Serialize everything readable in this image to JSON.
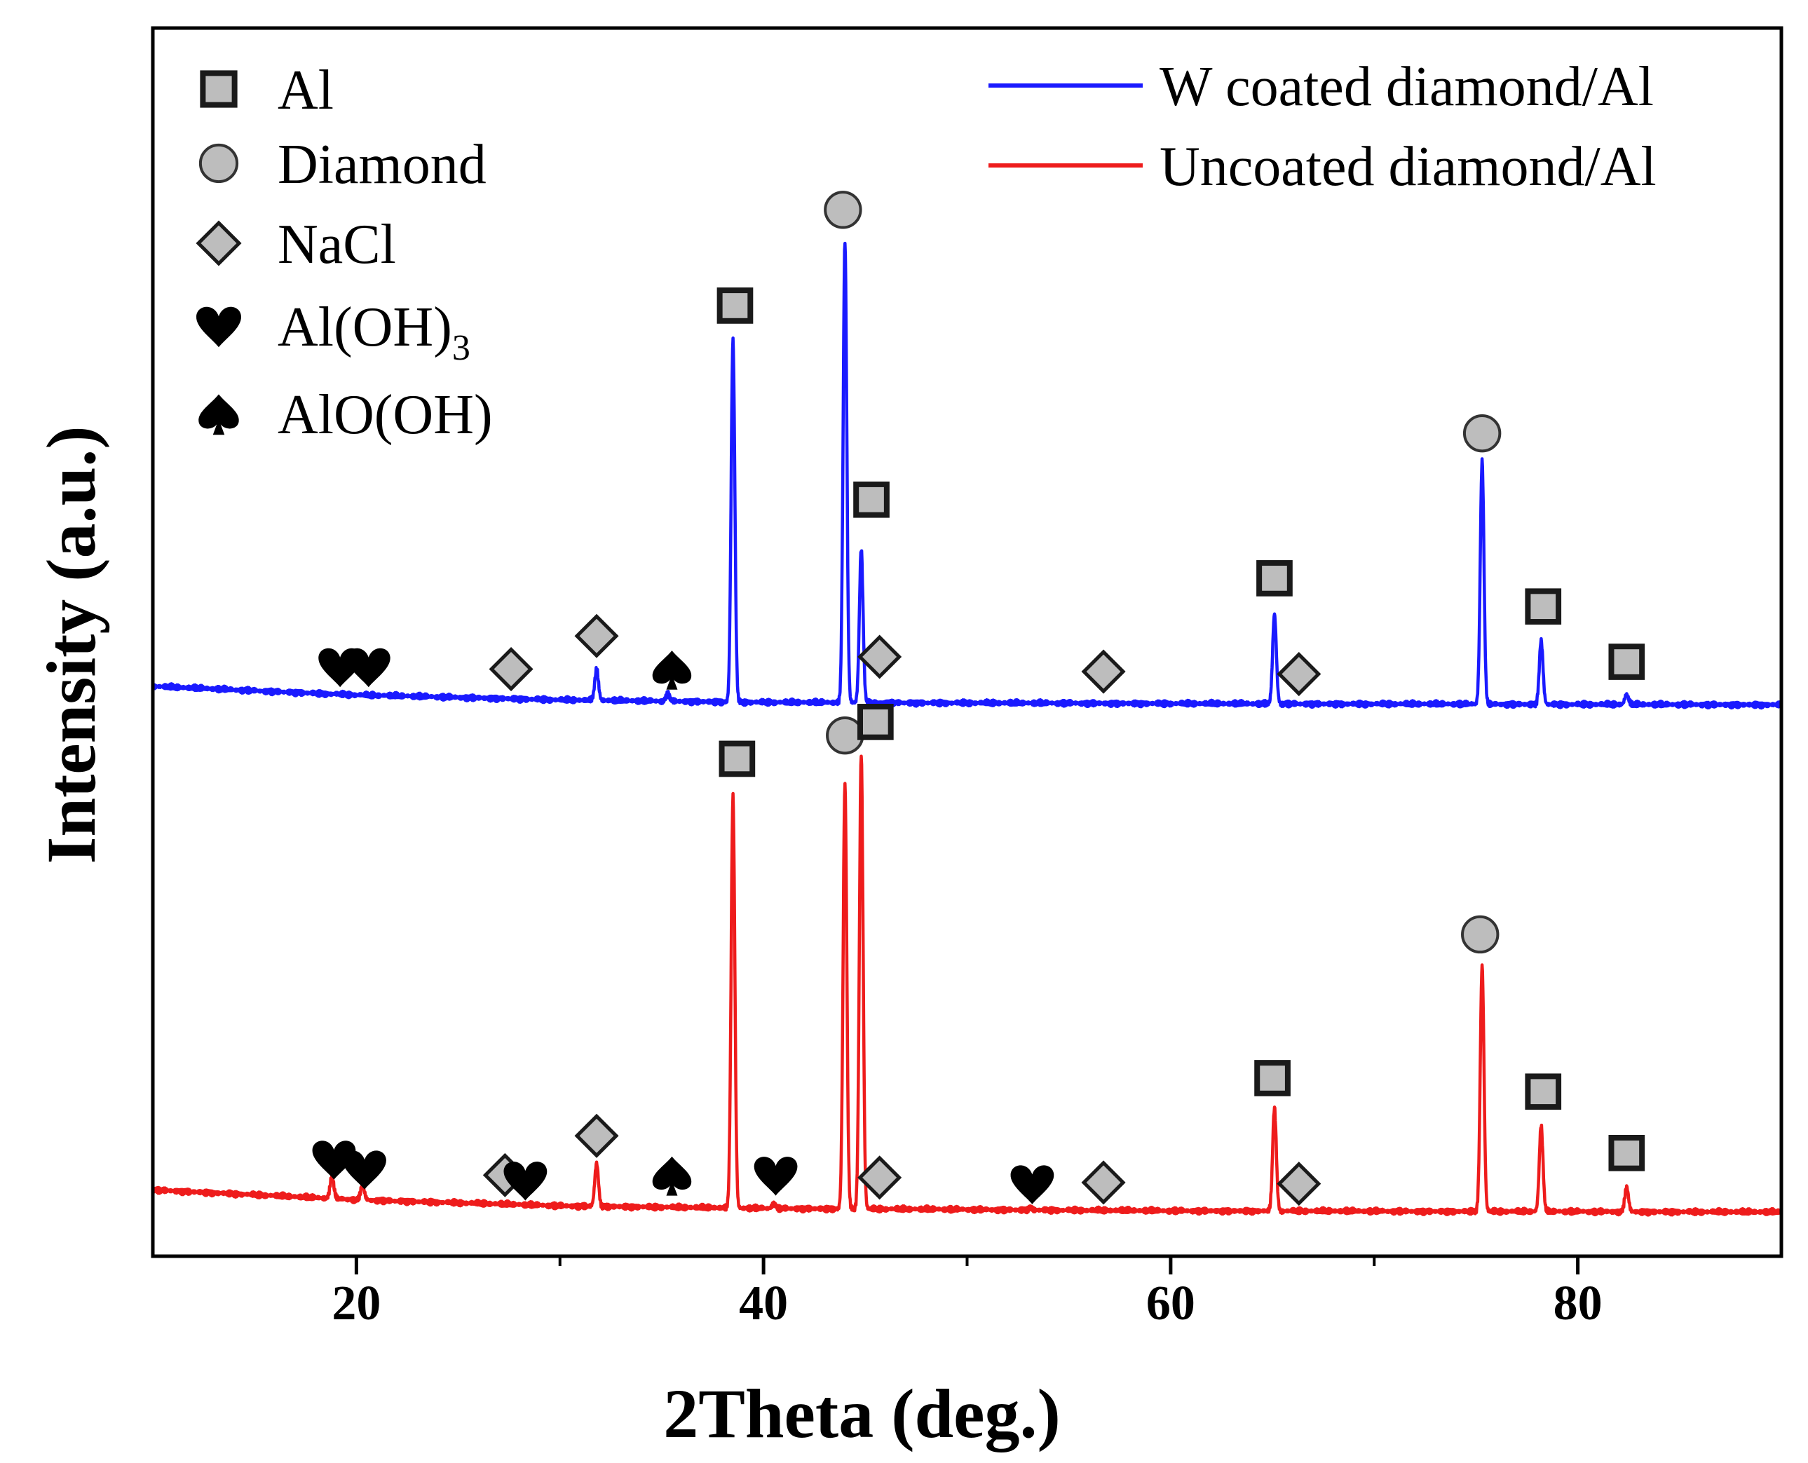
{
  "chart_data": {
    "type": "line",
    "xlabel": "2Theta (deg.)",
    "ylabel": "Intensity (a.u.)",
    "xlim": [
      10,
      90
    ],
    "ylim": [
      0,
      100
    ],
    "x_ticks": [
      20,
      40,
      60,
      80
    ],
    "x_minor_ticks": [
      30,
      50,
      70
    ],
    "y_ticks_shown": false,
    "series": [
      {
        "name": "W coated diamond/Al",
        "color": "#1a1aff",
        "baseline": [
          [
            10,
            46.4
          ],
          [
            20,
            45.7
          ],
          [
            30,
            45.3
          ],
          [
            40,
            45.1
          ],
          [
            60,
            45.0
          ],
          [
            90,
            44.9
          ]
        ],
        "peaks": [
          {
            "x": 31.8,
            "height": 2.5
          },
          {
            "x": 35.3,
            "height": 0.6
          },
          {
            "x": 38.5,
            "height": 29.5
          },
          {
            "x": 44.0,
            "height": 37.5
          },
          {
            "x": 44.8,
            "height": 12.5
          },
          {
            "x": 65.1,
            "height": 7.3
          },
          {
            "x": 75.3,
            "height": 19.8
          },
          {
            "x": 78.2,
            "height": 5.2
          },
          {
            "x": 82.4,
            "height": 0.8
          }
        ]
      },
      {
        "name": "Uncoated diamond/Al",
        "color": "#ee1c1c",
        "baseline": [
          [
            10,
            5.4
          ],
          [
            20,
            4.6
          ],
          [
            30,
            4.1
          ],
          [
            40,
            3.9
          ],
          [
            60,
            3.7
          ],
          [
            90,
            3.6
          ]
        ],
        "peaks": [
          {
            "x": 18.8,
            "height": 1.8
          },
          {
            "x": 20.3,
            "height": 1.2
          },
          {
            "x": 31.8,
            "height": 3.5
          },
          {
            "x": 38.5,
            "height": 33.5
          },
          {
            "x": 40.5,
            "height": 0.4
          },
          {
            "x": 44.0,
            "height": 34.5
          },
          {
            "x": 44.8,
            "height": 37.0
          },
          {
            "x": 53.1,
            "height": 0.2
          },
          {
            "x": 65.1,
            "height": 8.4
          },
          {
            "x": 75.3,
            "height": 20.0
          },
          {
            "x": 78.2,
            "height": 7.0
          },
          {
            "x": 82.4,
            "height": 2.0
          }
        ]
      }
    ],
    "phase_legend": [
      {
        "symbol": "square",
        "label": "Al"
      },
      {
        "symbol": "circle",
        "label": "Diamond"
      },
      {
        "symbol": "diamond",
        "label": "NaCl"
      },
      {
        "symbol": "heart",
        "label": "Al(OH)",
        "subscript": "3"
      },
      {
        "symbol": "spade",
        "label": "AlO(OH)"
      }
    ],
    "annotations": [
      {
        "series": "W coated diamond/Al",
        "symbol": "heart",
        "x": 19.2,
        "y": 48.0
      },
      {
        "series": "W coated diamond/Al",
        "symbol": "heart",
        "x": 20.6,
        "y": 48.0
      },
      {
        "series": "W coated diamond/Al",
        "symbol": "diamond",
        "x": 27.6,
        "y": 47.8
      },
      {
        "series": "W coated diamond/Al",
        "symbol": "diamond",
        "x": 31.8,
        "y": 50.5
      },
      {
        "series": "W coated diamond/Al",
        "symbol": "spade",
        "x": 35.5,
        "y": 47.8
      },
      {
        "series": "W coated diamond/Al",
        "symbol": "square",
        "x": 38.6,
        "y": 77.4
      },
      {
        "series": "W coated diamond/Al",
        "symbol": "circle",
        "x": 43.9,
        "y": 85.2
      },
      {
        "series": "W coated diamond/Al",
        "symbol": "square",
        "x": 45.3,
        "y": 61.6
      },
      {
        "series": "W coated diamond/Al",
        "symbol": "diamond",
        "x": 45.7,
        "y": 48.8
      },
      {
        "series": "W coated diamond/Al",
        "symbol": "diamond",
        "x": 56.7,
        "y": 47.6
      },
      {
        "series": "W coated diamond/Al",
        "symbol": "square",
        "x": 65.1,
        "y": 55.2
      },
      {
        "series": "W coated diamond/Al",
        "symbol": "diamond",
        "x": 66.3,
        "y": 47.4
      },
      {
        "series": "W coated diamond/Al",
        "symbol": "circle",
        "x": 75.3,
        "y": 67.0
      },
      {
        "series": "W coated diamond/Al",
        "symbol": "square",
        "x": 78.3,
        "y": 52.9
      },
      {
        "series": "W coated diamond/Al",
        "symbol": "square",
        "x": 82.4,
        "y": 48.4
      },
      {
        "series": "Uncoated diamond/Al",
        "symbol": "heart",
        "x": 18.9,
        "y": 7.9
      },
      {
        "series": "Uncoated diamond/Al",
        "symbol": "heart",
        "x": 20.4,
        "y": 7.1
      },
      {
        "series": "Uncoated diamond/Al",
        "symbol": "diamond",
        "x": 27.3,
        "y": 6.6
      },
      {
        "series": "Uncoated diamond/Al",
        "symbol": "heart",
        "x": 28.3,
        "y": 6.2
      },
      {
        "series": "Uncoated diamond/Al",
        "symbol": "diamond",
        "x": 31.8,
        "y": 9.8
      },
      {
        "series": "Uncoated diamond/Al",
        "symbol": "spade",
        "x": 35.5,
        "y": 6.6
      },
      {
        "series": "Uncoated diamond/Al",
        "symbol": "square",
        "x": 38.7,
        "y": 40.5
      },
      {
        "series": "Uncoated diamond/Al",
        "symbol": "heart",
        "x": 40.6,
        "y": 6.6
      },
      {
        "series": "Uncoated diamond/Al",
        "symbol": "circle",
        "x": 44.0,
        "y": 42.4
      },
      {
        "series": "Uncoated diamond/Al",
        "symbol": "square",
        "x": 45.5,
        "y": 43.5
      },
      {
        "series": "Uncoated diamond/Al",
        "symbol": "diamond",
        "x": 45.7,
        "y": 6.4
      },
      {
        "series": "Uncoated diamond/Al",
        "symbol": "heart",
        "x": 53.2,
        "y": 5.9
      },
      {
        "series": "Uncoated diamond/Al",
        "symbol": "diamond",
        "x": 56.7,
        "y": 6.0
      },
      {
        "series": "Uncoated diamond/Al",
        "symbol": "square",
        "x": 65.0,
        "y": 14.5
      },
      {
        "series": "Uncoated diamond/Al",
        "symbol": "diamond",
        "x": 66.3,
        "y": 5.9
      },
      {
        "series": "Uncoated diamond/Al",
        "symbol": "circle",
        "x": 75.2,
        "y": 26.2
      },
      {
        "series": "Uncoated diamond/Al",
        "symbol": "square",
        "x": 78.3,
        "y": 13.4
      },
      {
        "series": "Uncoated diamond/Al",
        "symbol": "square",
        "x": 82.4,
        "y": 8.4
      }
    ],
    "legend_position": "top-right",
    "phase_legend_position": "top-left",
    "grid": false
  }
}
